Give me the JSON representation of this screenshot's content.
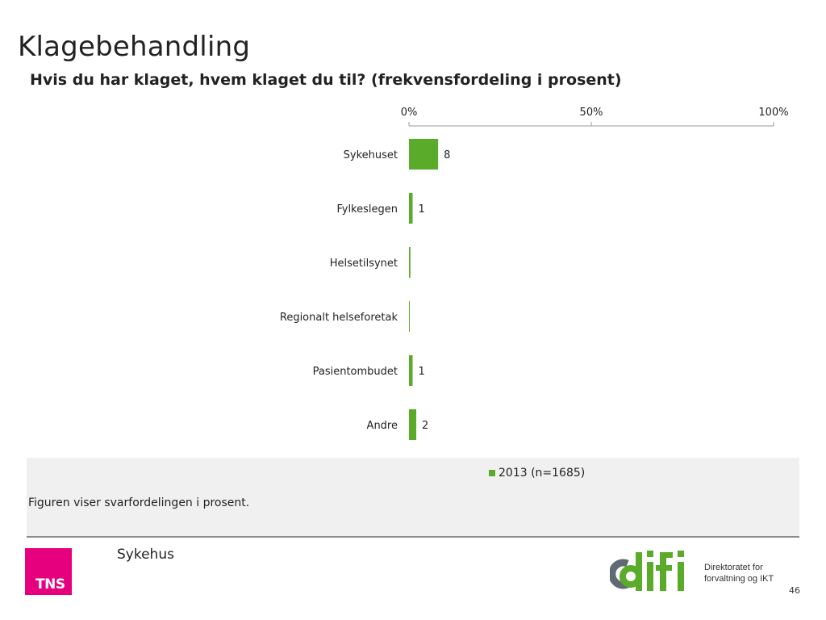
{
  "title": "Klagebehandling",
  "subtitle": "Hvis du har klaget, hvem klaget du til? (frekvensfordeling i prosent)",
  "chart_data": {
    "type": "bar",
    "orientation": "horizontal",
    "categories": [
      "Sykehuset",
      "Fylkeslegen",
      "Helsetilsynet",
      "Regionalt helseforetak",
      "Pasientombudet",
      "Andre"
    ],
    "series": [
      {
        "name": "2013 (n=1685)",
        "values": [
          8,
          1,
          0.4,
          0.2,
          1,
          2
        ],
        "labels": [
          "8",
          "1",
          "",
          "",
          "1",
          "2"
        ],
        "color": "#5aab2a"
      }
    ],
    "x_ticks": [
      "0%",
      "50%",
      "100%"
    ],
    "xlim": [
      0,
      100
    ],
    "legend_position": "bottom",
    "grid": false
  },
  "note": "Figuren viser svarfordelingen i prosent.",
  "footer": {
    "label": "Sykehus",
    "tns_logo_text": "TNS",
    "difi_line1": "Direktoratet for",
    "difi_line2": "forvaltning og IKT",
    "page_number": "46"
  },
  "colors": {
    "tns_pink": "#e6007e",
    "difi_green": "#5aab2a",
    "difi_gray": "#5f6a72"
  }
}
